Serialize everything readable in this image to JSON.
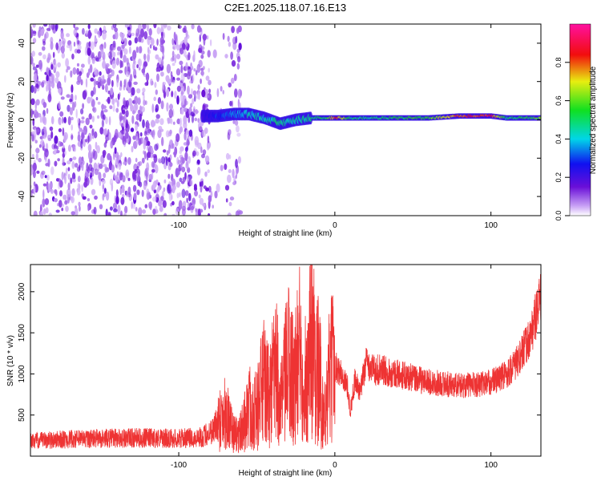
{
  "title": "C2E1.2025.118.07.16.E13",
  "chart_data": [
    {
      "type": "heatmap",
      "xlabel": "Height of straight line (km)",
      "ylabel": "Frequency (Hz)",
      "xlim": [
        -195,
        132
      ],
      "ylim": [
        -50,
        50
      ],
      "xticks": [
        -100,
        0,
        100
      ],
      "xtick_labels": [
        "-100",
        "0",
        "100"
      ],
      "yticks": [
        -40,
        -20,
        0,
        20,
        40
      ],
      "ytick_labels": [
        "-40",
        "-20",
        "0",
        "20",
        "40"
      ],
      "colorbar": {
        "label": "Normalized spectral amplitude",
        "range": [
          0,
          1
        ],
        "ticks": [
          0.0,
          0.2,
          0.4,
          0.6,
          0.8
        ],
        "tick_labels": [
          "0.0",
          "0.2",
          "0.4",
          "0.6",
          "0.8"
        ],
        "colormap": "rainbow (white → purple → blue → cyan → green → yellow → red → magenta)"
      },
      "noise_region_x": [
        -195,
        -60
      ],
      "signal_track": {
        "x": [
          -85,
          -75,
          -65,
          -55,
          -45,
          -35,
          -25,
          -15,
          -5,
          0,
          10,
          20,
          40,
          60,
          80,
          100,
          110,
          120,
          132
        ],
        "frequency": [
          2,
          2,
          3,
          3,
          1,
          -2,
          0,
          1,
          1,
          1,
          1,
          1,
          1,
          1,
          2,
          2,
          1,
          1,
          1
        ],
        "amplitude": [
          0.2,
          0.3,
          0.35,
          0.45,
          0.45,
          0.5,
          0.45,
          0.5,
          0.55,
          0.85,
          0.5,
          0.5,
          0.55,
          0.6,
          0.85,
          0.9,
          0.5,
          0.55,
          0.6
        ]
      },
      "grid": false
    },
    {
      "type": "line",
      "xlabel": "Height of straight line (km)",
      "ylabel": "SNR (10 * v/v)",
      "xlim": [
        -195,
        132
      ],
      "ylim": [
        0,
        2330
      ],
      "xticks": [
        -100,
        0,
        100
      ],
      "xtick_labels": [
        "-100",
        "0",
        "100"
      ],
      "yticks": [
        500,
        1000,
        1500,
        2000
      ],
      "ytick_labels": [
        "500",
        "1000",
        "1500",
        "2000"
      ],
      "series": [
        {
          "color": "#ee3333",
          "x": [
            -195,
            -180,
            -160,
            -140,
            -120,
            -100,
            -85,
            -78,
            -74,
            -70,
            -67,
            -64,
            -60,
            -55,
            -50,
            -46,
            -42,
            -38,
            -34,
            -30,
            -26,
            -22,
            -18,
            -15,
            -12,
            -10,
            -8,
            -6,
            -4,
            -2,
            0,
            4,
            8,
            10,
            13,
            16,
            20,
            25,
            30,
            40,
            50,
            60,
            70,
            80,
            90,
            100,
            110,
            115,
            120,
            125,
            128,
            132
          ],
          "values": [
            180,
            200,
            210,
            220,
            220,
            215,
            230,
            320,
            450,
            560,
            350,
            250,
            300,
            600,
            550,
            900,
            700,
            1050,
            650,
            1150,
            900,
            1300,
            850,
            1550,
            1100,
            1000,
            650,
            450,
            900,
            1050,
            1100,
            1000,
            850,
            550,
            950,
            750,
            1150,
            1050,
            1050,
            1000,
            950,
            900,
            880,
            860,
            870,
            900,
            1000,
            1100,
            1250,
            1450,
            1650,
            1900
          ]
        }
      ],
      "grid": false
    }
  ]
}
